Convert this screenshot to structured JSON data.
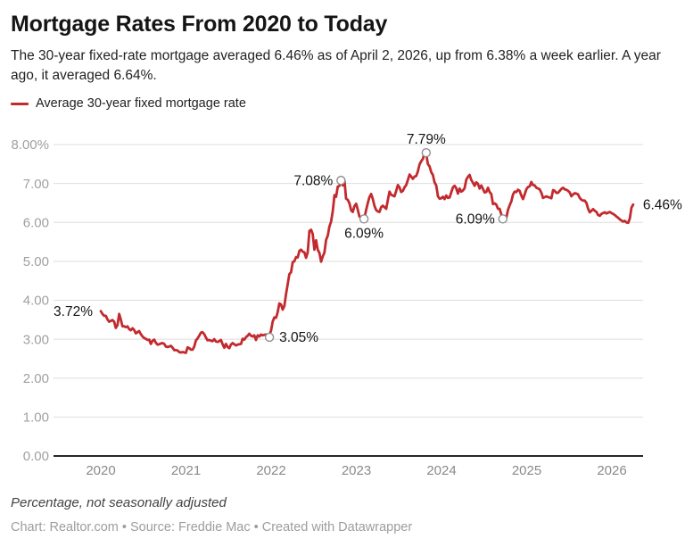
{
  "header": {
    "title": "Mortgage Rates From 2020 to Today",
    "subtitle": "The 30-year fixed-rate mortgage averaged 6.46% as of April 2, 2026, up from 6.38% a week earlier. A year ago, it averaged 6.64%.",
    "legend": {
      "label": "Average 30-year fixed mortgage rate"
    }
  },
  "colors": {
    "line": "#c22a2e",
    "grid": "#dedede",
    "axis": "#262626",
    "y_label": "#a0a0a0",
    "x_label": "#8a8a8a",
    "annotation": "#141414",
    "marker_stroke": "#8f8f8f",
    "marker_fill": "#ffffff"
  },
  "chart_data": {
    "type": "line",
    "title": "Mortgage Rates From 2020 to Today",
    "xlabel": "",
    "ylabel": "",
    "ylim": [
      0,
      8
    ],
    "xlim": [
      2020.0,
      2026.25
    ],
    "grid": "horizontal",
    "legend_position": "top-left",
    "y_ticks": [
      {
        "v": 8,
        "label": "8.00%"
      },
      {
        "v": 7,
        "label": "7.00"
      },
      {
        "v": 6,
        "label": "6.00"
      },
      {
        "v": 5,
        "label": "5.00"
      },
      {
        "v": 4,
        "label": "4.00"
      },
      {
        "v": 3,
        "label": "3.00"
      },
      {
        "v": 2,
        "label": "2.00"
      },
      {
        "v": 1,
        "label": "1.00"
      },
      {
        "v": 0,
        "label": "0.00"
      }
    ],
    "x_ticks": [
      {
        "v": 2020,
        "label": "2020"
      },
      {
        "v": 2021,
        "label": "2021"
      },
      {
        "v": 2022,
        "label": "2022"
      },
      {
        "v": 2023,
        "label": "2023"
      },
      {
        "v": 2024,
        "label": "2024"
      },
      {
        "v": 2025,
        "label": "2025"
      },
      {
        "v": 2026,
        "label": "2026"
      }
    ],
    "series": [
      {
        "name": "Average 30-year fixed mortgage rate",
        "interval": "weekly",
        "x_start": 2020.0,
        "x_end": 2026.25,
        "values": [
          3.72,
          3.65,
          3.6,
          3.6,
          3.51,
          3.45,
          3.47,
          3.49,
          3.45,
          3.29,
          3.36,
          3.65,
          3.5,
          3.33,
          3.33,
          3.31,
          3.33,
          3.26,
          3.23,
          3.28,
          3.24,
          3.15,
          3.18,
          3.21,
          3.13,
          3.07,
          3.03,
          3.01,
          2.98,
          2.99,
          2.88,
          2.96,
          2.99,
          2.91,
          2.86,
          2.87,
          2.89,
          2.9,
          2.88,
          2.81,
          2.8,
          2.81,
          2.83,
          2.78,
          2.72,
          2.72,
          2.71,
          2.67,
          2.66,
          2.67,
          2.66,
          2.65,
          2.79,
          2.77,
          2.73,
          2.73,
          2.81,
          2.97,
          3.02,
          3.09,
          3.17,
          3.18,
          3.13,
          3.04,
          2.97,
          2.98,
          2.96,
          2.95,
          3.0,
          2.94,
          2.93,
          2.95,
          2.98,
          2.87,
          2.78,
          2.88,
          2.8,
          2.77,
          2.86,
          2.9,
          2.87,
          2.84,
          2.86,
          2.87,
          2.88,
          3.01,
          2.99,
          3.05,
          3.09,
          3.14,
          3.09,
          3.07,
          3.1,
          2.98,
          3.1,
          3.07,
          3.12,
          3.1,
          3.11,
          3.12,
          3.05,
          3.11,
          3.22,
          3.45,
          3.56,
          3.55,
          3.69,
          3.92,
          3.89,
          3.76,
          3.85,
          4.16,
          4.42,
          4.67,
          4.72,
          4.98,
          5.0,
          5.11,
          5.1,
          5.27,
          5.3,
          5.25,
          5.23,
          5.09,
          5.23,
          5.78,
          5.81,
          5.7,
          5.3,
          5.54,
          5.3,
          5.22,
          4.99,
          5.13,
          5.22,
          5.55,
          5.66,
          5.89,
          6.02,
          6.29,
          6.7,
          6.66,
          6.92,
          6.94,
          7.08,
          6.95,
          7.08,
          6.61,
          6.58,
          6.49,
          6.31,
          6.27,
          6.42,
          6.48,
          6.33,
          6.15,
          6.13,
          6.09,
          6.12,
          6.32,
          6.5,
          6.65,
          6.73,
          6.6,
          6.42,
          6.32,
          6.28,
          6.27,
          6.39,
          6.43,
          6.39,
          6.35,
          6.57,
          6.79,
          6.71,
          6.69,
          6.67,
          6.81,
          6.96,
          6.9,
          6.78,
          6.81,
          6.9,
          6.96,
          7.09,
          7.23,
          7.18,
          7.12,
          7.18,
          7.19,
          7.31,
          7.49,
          7.57,
          7.63,
          7.79,
          7.76,
          7.5,
          7.44,
          7.29,
          7.22,
          7.03,
          6.95,
          6.67,
          6.61,
          6.62,
          6.66,
          6.6,
          6.69,
          6.63,
          6.64,
          6.77,
          6.9,
          6.94,
          6.88,
          6.74,
          6.87,
          6.79,
          6.82,
          6.88,
          7.1,
          7.17,
          7.22,
          7.09,
          7.02,
          6.94,
          7.03,
          6.99,
          6.87,
          6.95,
          6.86,
          6.77,
          6.78,
          6.89,
          6.78,
          6.73,
          6.47,
          6.49,
          6.46,
          6.35,
          6.35,
          6.2,
          6.09,
          6.08,
          6.12,
          6.32,
          6.44,
          6.54,
          6.72,
          6.79,
          6.78,
          6.84,
          6.81,
          6.69,
          6.6,
          6.72,
          6.85,
          6.91,
          6.93,
          7.04,
          6.96,
          6.95,
          6.89,
          6.87,
          6.85,
          6.76,
          6.63,
          6.65,
          6.67,
          6.65,
          6.64,
          6.62,
          6.83,
          6.81,
          6.76,
          6.76,
          6.81,
          6.86,
          6.89,
          6.85,
          6.84,
          6.81,
          6.77,
          6.67,
          6.72,
          6.75,
          6.74,
          6.72,
          6.63,
          6.58,
          6.56,
          6.56,
          6.5,
          6.35,
          6.26,
          6.3,
          6.34,
          6.3,
          6.27,
          6.19,
          6.17,
          6.22,
          6.24,
          6.26,
          6.23,
          6.25,
          6.27,
          6.24,
          6.22,
          6.19,
          6.15,
          6.12,
          6.08,
          6.05,
          6.02,
          6.04,
          6.0,
          5.99,
          6.1,
          6.38,
          6.46
        ]
      }
    ],
    "annotations": [
      {
        "label": "3.72%",
        "x": 2020.0,
        "y": 3.72,
        "marker": false,
        "anchor": "left"
      },
      {
        "label": "3.05%",
        "x": 2021.98,
        "y": 3.05,
        "marker": true,
        "anchor": "right"
      },
      {
        "label": "7.08%",
        "x": 2022.82,
        "y": 7.08,
        "marker": true,
        "anchor": "left"
      },
      {
        "label": "6.09%",
        "x": 2023.09,
        "y": 6.09,
        "marker": true,
        "anchor": "below"
      },
      {
        "label": "7.79%",
        "x": 2023.82,
        "y": 7.79,
        "marker": true,
        "anchor": "above"
      },
      {
        "label": "6.09%",
        "x": 2024.72,
        "y": 6.09,
        "marker": true,
        "anchor": "left"
      },
      {
        "label": "6.46%",
        "x": 2026.25,
        "y": 6.46,
        "marker": false,
        "anchor": "right"
      }
    ]
  },
  "footer": {
    "note": "Percentage, not seasonally adjusted",
    "credit": "Chart: Realtor.com • Source: Freddie Mac • Created with Datawrapper"
  }
}
